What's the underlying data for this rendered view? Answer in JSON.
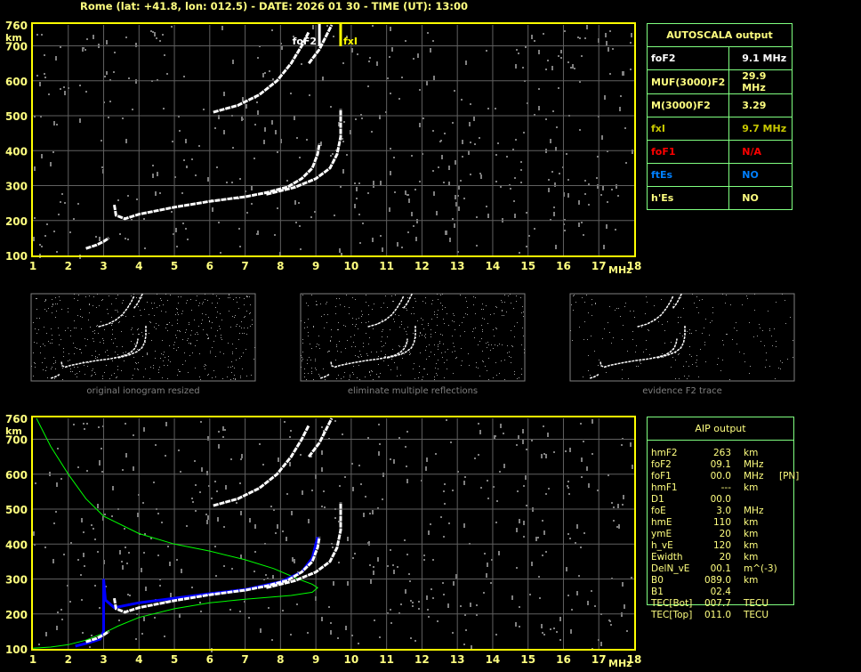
{
  "header": {
    "title": "Rome (lat: +41.8, lon: 012.5) - DATE: 2026 01 30 - TIME (UT): 13:00"
  },
  "colors": {
    "axis": "#ffff00",
    "grid": "#606060",
    "label": "#ffff80",
    "table_border": "#80ff80",
    "trace": "#ffffff",
    "profile": "#00ff00",
    "aip_trace": "#0000ff",
    "fof1": "#ff0000",
    "ftes": "#0080ff"
  },
  "autoscala": {
    "title": "AUTOSCALA output",
    "rows": [
      {
        "label": "foF2",
        "value": "9.1 MHz",
        "color": "#ffffff"
      },
      {
        "label": "MUF(3000)F2",
        "value": "29.9 MHz",
        "color": "#ffff80"
      },
      {
        "label": "M(3000)F2",
        "value": "3.29",
        "color": "#ffff80"
      },
      {
        "label": "fxI",
        "value": "9.7 MHz",
        "color": "#c8c800"
      },
      {
        "label": "foF1",
        "value": "N/A",
        "color": "#ff0000"
      },
      {
        "label": "ftEs",
        "value": "NO",
        "color": "#0080ff"
      },
      {
        "label": "h'Es",
        "value": "NO",
        "color": "#ffff80"
      }
    ]
  },
  "aip": {
    "title": "AIP output",
    "rows": [
      {
        "k": "hmF2",
        "v": "263",
        "u": "km",
        "x": ""
      },
      {
        "k": "foF2",
        "v": "09.1",
        "u": "MHz",
        "x": ""
      },
      {
        "k": "foF1",
        "v": "00.0",
        "u": "MHz",
        "x": "[PN]"
      },
      {
        "k": "hmF1",
        "v": "---",
        "u": "km",
        "x": ""
      },
      {
        "k": "D1",
        "v": "00.0",
        "u": "",
        "x": ""
      },
      {
        "k": "foE",
        "v": "3.0",
        "u": "MHz",
        "x": ""
      },
      {
        "k": "hmE",
        "v": "110",
        "u": "km",
        "x": ""
      },
      {
        "k": "ymE",
        "v": "20",
        "u": "km",
        "x": ""
      },
      {
        "k": "h_vE",
        "v": "120",
        "u": "km",
        "x": ""
      },
      {
        "k": "Ewidth",
        "v": "20",
        "u": "km",
        "x": ""
      },
      {
        "k": "DelN_vE",
        "v": "00.1",
        "u": "m^(-3)",
        "x": ""
      },
      {
        "k": "B0",
        "v": "089.0",
        "u": "km",
        "x": ""
      },
      {
        "k": "B1",
        "v": "02.4",
        "u": "",
        "x": ""
      },
      {
        "k": "TEC[Bot]",
        "v": "007.7",
        "u": "TECU",
        "x": ""
      },
      {
        "k": "TEC[Top]",
        "v": "011.0",
        "u": "TECU",
        "x": ""
      }
    ]
  },
  "thumbnails": [
    "original ionogram resized",
    "eliminate multiple reflections",
    "evidence F2 trace"
  ],
  "chart_data": [
    {
      "type": "scatter",
      "xlabel": "MHz",
      "ylabel": "km",
      "xlim": [
        1,
        18
      ],
      "ylim": [
        100,
        760
      ],
      "xticks": [
        "1",
        "2",
        "3",
        "4",
        "5",
        "6",
        "7",
        "8",
        "9",
        "10",
        "11",
        "12",
        "13",
        "14",
        "15",
        "16",
        "17",
        "18"
      ],
      "yticks": [
        "100",
        "200",
        "300",
        "400",
        "500",
        "600",
        "700",
        "760"
      ],
      "grid": true,
      "markers": [
        {
          "label": "foF2",
          "x": 9.1,
          "color": "#ffffff"
        },
        {
          "label": "fxI",
          "x": 9.7,
          "color": "#ffff00"
        }
      ],
      "series": [
        {
          "color": "#ffffff",
          "points": [
            [
              2.5,
              120
            ],
            [
              2.8,
              130
            ],
            [
              3.0,
              140
            ],
            [
              3.15,
              150
            ]
          ]
        },
        {
          "color": "#ffffff",
          "points": [
            [
              3.3,
              245
            ],
            [
              3.35,
              215
            ],
            [
              3.6,
              205
            ],
            [
              4,
              218
            ],
            [
              5,
              238
            ],
            [
              6,
              255
            ],
            [
              7,
              268
            ],
            [
              7.6,
              280
            ],
            [
              8.2,
              296
            ],
            [
              8.6,
              320
            ],
            [
              8.9,
              350
            ],
            [
              9.05,
              390
            ],
            [
              9.1,
              420
            ]
          ]
        },
        {
          "color": "#ffffff",
          "points": [
            [
              7.6,
              275
            ],
            [
              8.4,
              295
            ],
            [
              9.0,
              320
            ],
            [
              9.4,
              350
            ],
            [
              9.6,
              390
            ],
            [
              9.7,
              440
            ],
            [
              9.7,
              520
            ]
          ]
        },
        {
          "color": "#ffffff",
          "points": [
            [
              6.1,
              510
            ],
            [
              6.8,
              530
            ],
            [
              7.4,
              560
            ],
            [
              7.9,
              600
            ],
            [
              8.3,
              650
            ],
            [
              8.6,
              700
            ],
            [
              8.8,
              740
            ]
          ]
        },
        {
          "color": "#ffffff",
          "points": [
            [
              8.8,
              650
            ],
            [
              9.1,
              690
            ],
            [
              9.3,
              730
            ],
            [
              9.45,
              760
            ]
          ]
        }
      ]
    },
    {
      "type": "line",
      "xlabel": "MHz",
      "ylabel": "km",
      "xlim": [
        1,
        18
      ],
      "ylim": [
        100,
        760
      ],
      "xticks": [
        "1",
        "2",
        "3",
        "4",
        "5",
        "6",
        "7",
        "8",
        "9",
        "10",
        "11",
        "12",
        "13",
        "14",
        "15",
        "16",
        "17",
        "18"
      ],
      "yticks": [
        "100",
        "200",
        "300",
        "400",
        "500",
        "600",
        "700",
        "760"
      ],
      "grid": true,
      "series": [
        {
          "color": "#00ff00",
          "points": [
            [
              1.1,
              760
            ],
            [
              1.5,
              680
            ],
            [
              2,
              600
            ],
            [
              2.5,
              530
            ],
            [
              3,
              480
            ],
            [
              4,
              430
            ],
            [
              5,
              400
            ],
            [
              6,
              380
            ],
            [
              7,
              355
            ],
            [
              7.8,
              330
            ],
            [
              8.5,
              300
            ],
            [
              8.9,
              285
            ],
            [
              9.05,
              275
            ],
            [
              8.9,
              262
            ],
            [
              8.3,
              253
            ],
            [
              7,
              242
            ],
            [
              6,
              232
            ],
            [
              5,
              215
            ],
            [
              4,
              190
            ],
            [
              3.4,
              165
            ],
            [
              3,
              145
            ],
            [
              2.5,
              125
            ],
            [
              2,
              112
            ],
            [
              1.5,
              105
            ],
            [
              1,
              102
            ]
          ]
        },
        {
          "color": "#0000ff",
          "points": [
            [
              2.2,
              108
            ],
            [
              2.6,
              118
            ],
            [
              2.9,
              128
            ],
            [
              3.0,
              150
            ],
            [
              3.0,
              300
            ],
            [
              3.05,
              240
            ],
            [
              3.3,
              218
            ],
            [
              4,
              232
            ],
            [
              5,
              245
            ],
            [
              6,
              258
            ],
            [
              7,
              270
            ],
            [
              8,
              292
            ],
            [
              8.6,
              320
            ],
            [
              8.9,
              360
            ],
            [
              9.05,
              420
            ]
          ]
        },
        {
          "color": "#ffffff",
          "points": [
            [
              2.5,
              120
            ],
            [
              2.8,
              130
            ],
            [
              3.0,
              140
            ],
            [
              3.15,
              150
            ]
          ]
        },
        {
          "color": "#ffffff",
          "points": [
            [
              3.3,
              245
            ],
            [
              3.35,
              215
            ],
            [
              3.6,
              205
            ],
            [
              4,
              218
            ],
            [
              5,
              238
            ],
            [
              6,
              255
            ],
            [
              7,
              268
            ],
            [
              7.6,
              280
            ],
            [
              8.2,
              296
            ],
            [
              8.6,
              320
            ],
            [
              8.9,
              350
            ],
            [
              9.05,
              390
            ],
            [
              9.1,
              420
            ]
          ]
        },
        {
          "color": "#ffffff",
          "points": [
            [
              7.6,
              275
            ],
            [
              8.4,
              295
            ],
            [
              9.0,
              320
            ],
            [
              9.4,
              350
            ],
            [
              9.6,
              390
            ],
            [
              9.7,
              440
            ],
            [
              9.7,
              520
            ]
          ]
        },
        {
          "color": "#ffffff",
          "points": [
            [
              6.1,
              510
            ],
            [
              6.8,
              530
            ],
            [
              7.4,
              560
            ],
            [
              7.9,
              600
            ],
            [
              8.3,
              650
            ],
            [
              8.6,
              700
            ],
            [
              8.8,
              740
            ]
          ]
        },
        {
          "color": "#ffffff",
          "points": [
            [
              8.8,
              650
            ],
            [
              9.1,
              690
            ],
            [
              9.3,
              730
            ],
            [
              9.45,
              760
            ]
          ]
        }
      ]
    }
  ]
}
